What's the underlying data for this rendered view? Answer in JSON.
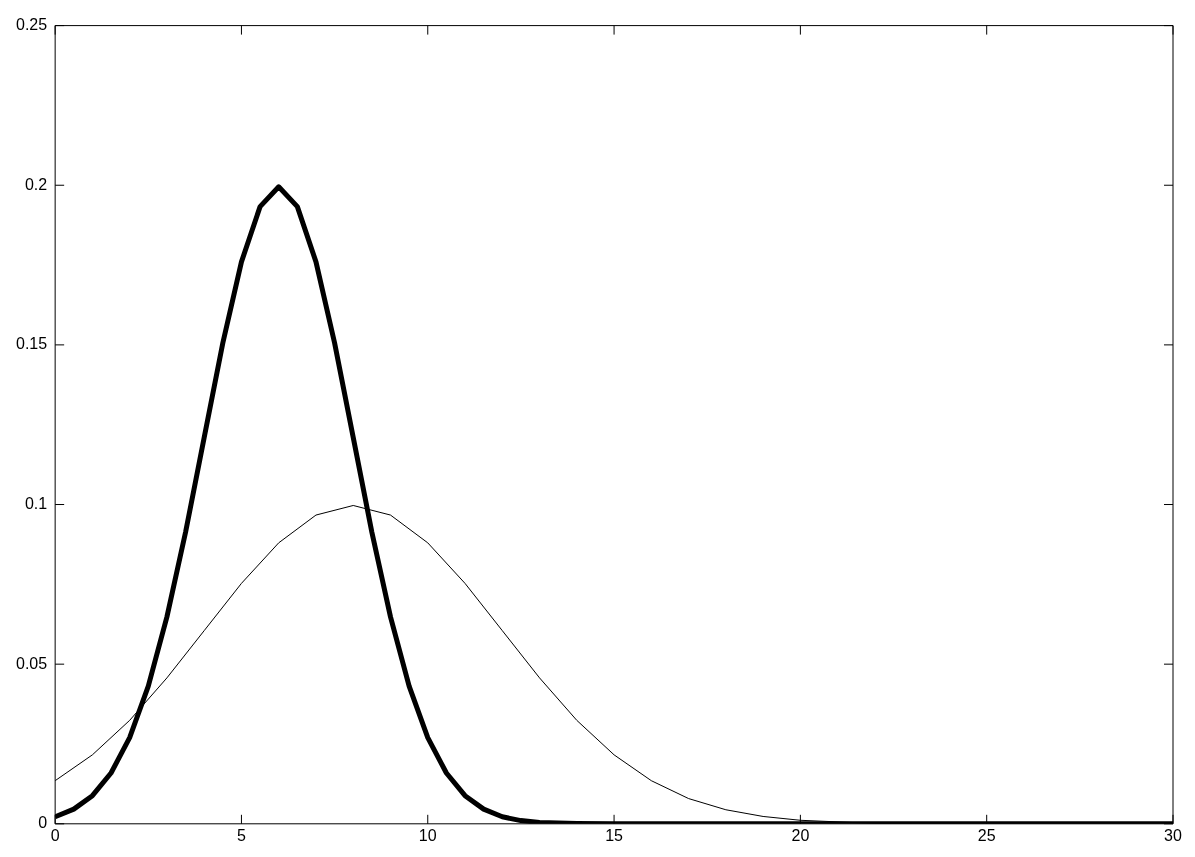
{
  "chart_data": {
    "type": "line",
    "xlim": [
      0,
      30
    ],
    "ylim": [
      0,
      0.25
    ],
    "xticks": [
      0,
      5,
      10,
      15,
      20,
      25,
      30
    ],
    "yticks": [
      0,
      0.05,
      0.1,
      0.15,
      0.2,
      0.25
    ],
    "grid": false,
    "legend": false,
    "marker": "none",
    "line_style": "solid",
    "series": [
      {
        "color": "#000000",
        "x": [
          0,
          0.5,
          1,
          1.5,
          2,
          2.5,
          3,
          3.5,
          4,
          4.5,
          5,
          5.5,
          6,
          6.5,
          7,
          7.5,
          8,
          8.5,
          9,
          9.5,
          10,
          10.5,
          11,
          11.5,
          12,
          12.5,
          13,
          14,
          15,
          20,
          25,
          30
        ],
        "values": [
          0.0022,
          0.0046,
          0.0088,
          0.0159,
          0.027,
          0.0431,
          0.0648,
          0.0913,
          0.121,
          0.1506,
          0.176,
          0.1933,
          0.1995,
          0.1933,
          0.176,
          0.1506,
          0.121,
          0.0913,
          0.0648,
          0.0431,
          0.027,
          0.0159,
          0.0088,
          0.0046,
          0.0022,
          0.001,
          0.0004,
          0.0001,
          0,
          0,
          0,
          0
        ]
      },
      {
        "color": "#000000",
        "x": [
          0,
          1,
          2,
          3,
          4,
          5,
          6,
          7,
          8,
          9,
          10,
          11,
          12,
          13,
          14,
          15,
          16,
          17,
          18,
          19,
          20,
          22,
          25,
          30
        ],
        "values": [
          0.0135,
          0.0216,
          0.0324,
          0.0457,
          0.0605,
          0.0753,
          0.088,
          0.0967,
          0.0997,
          0.0967,
          0.088,
          0.0753,
          0.0605,
          0.0457,
          0.0324,
          0.0216,
          0.0135,
          0.0079,
          0.0044,
          0.0023,
          0.0011,
          0.0001,
          0,
          0
        ]
      }
    ]
  }
}
